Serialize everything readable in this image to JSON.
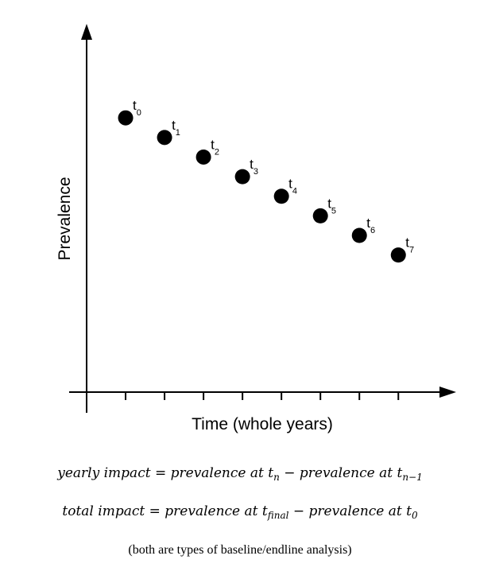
{
  "chart_data": {
    "type": "scatter",
    "title": "",
    "xlabel": "Time (whole years)",
    "ylabel": "Prevalence",
    "x": [
      1,
      2,
      3,
      4,
      5,
      6,
      7,
      8
    ],
    "y": [
      7.0,
      6.5,
      6.0,
      5.5,
      5.0,
      4.5,
      4.0,
      3.5
    ],
    "point_labels": [
      {
        "base": "t",
        "sub": "0"
      },
      {
        "base": "t",
        "sub": "1"
      },
      {
        "base": "t",
        "sub": "2"
      },
      {
        "base": "t",
        "sub": "3"
      },
      {
        "base": "t",
        "sub": "4"
      },
      {
        "base": "t",
        "sub": "5"
      },
      {
        "base": "t",
        "sub": "6"
      },
      {
        "base": "t",
        "sub": "7"
      }
    ],
    "xlim": [
      0,
      9.3
    ],
    "ylim": [
      0,
      9.4
    ],
    "x_ticks": [
      1,
      2,
      3,
      4,
      5,
      6,
      7,
      8
    ],
    "grid": false,
    "legend": "none",
    "marker_color": "#000000",
    "axis_color": "#000000"
  },
  "formulas": {
    "yearly": {
      "lhs": "yearly impact",
      "eq": " = ",
      "term1": "prevalence at t",
      "term1_sub": "n",
      "minus": " − ",
      "term2": "prevalence at t",
      "term2_sub": "n−1"
    },
    "total": {
      "lhs": "total impact",
      "eq": " = ",
      "term1": "prevalence at t",
      "term1_sub": "final",
      "minus": " − ",
      "term2": "prevalence at t",
      "term2_sub": "0"
    }
  },
  "footnote": "(both are types of baseline/endline analysis)"
}
